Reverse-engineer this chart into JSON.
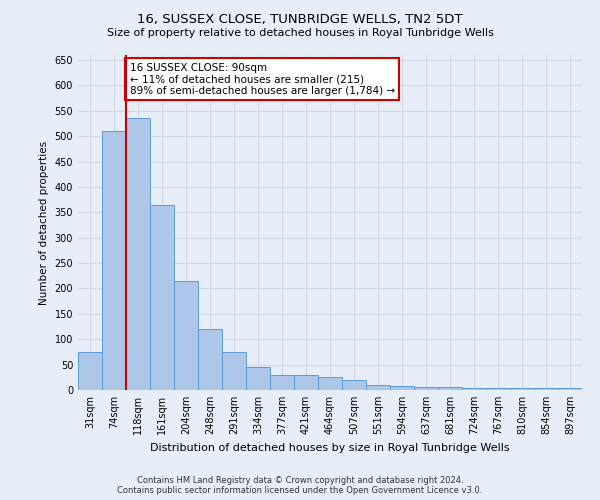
{
  "title": "16, SUSSEX CLOSE, TUNBRIDGE WELLS, TN2 5DT",
  "subtitle": "Size of property relative to detached houses in Royal Tunbridge Wells",
  "xlabel": "Distribution of detached houses by size in Royal Tunbridge Wells",
  "ylabel": "Number of detached properties",
  "footer_line1": "Contains HM Land Registry data © Crown copyright and database right 2024.",
  "footer_line2": "Contains public sector information licensed under the Open Government Licence v3.0.",
  "bar_labels": [
    "31sqm",
    "74sqm",
    "118sqm",
    "161sqm",
    "204sqm",
    "248sqm",
    "291sqm",
    "334sqm",
    "377sqm",
    "421sqm",
    "464sqm",
    "507sqm",
    "551sqm",
    "594sqm",
    "637sqm",
    "681sqm",
    "724sqm",
    "767sqm",
    "810sqm",
    "854sqm",
    "897sqm"
  ],
  "bar_values": [
    75,
    510,
    535,
    365,
    215,
    120,
    75,
    45,
    30,
    30,
    25,
    20,
    10,
    8,
    6,
    5,
    4,
    3,
    3,
    3,
    3
  ],
  "bar_color": "#aec6e8",
  "bar_edge_color": "#5b9bd5",
  "grid_color": "#d0d8e8",
  "background_color": "#e8eef8",
  "red_line_color": "#cc0000",
  "annotation_text": "16 SUSSEX CLOSE: 90sqm\n← 11% of detached houses are smaller (215)\n89% of semi-detached houses are larger (1,784) →",
  "annotation_box_color": "white",
  "annotation_box_edge_color": "#cc0000",
  "ylim": [
    0,
    660
  ],
  "yticks": [
    0,
    50,
    100,
    150,
    200,
    250,
    300,
    350,
    400,
    450,
    500,
    550,
    600,
    650
  ],
  "title_fontsize": 9.5,
  "subtitle_fontsize": 8,
  "ylabel_fontsize": 7.5,
  "xlabel_fontsize": 8,
  "tick_fontsize": 7,
  "footer_fontsize": 6,
  "annot_fontsize": 7.5
}
